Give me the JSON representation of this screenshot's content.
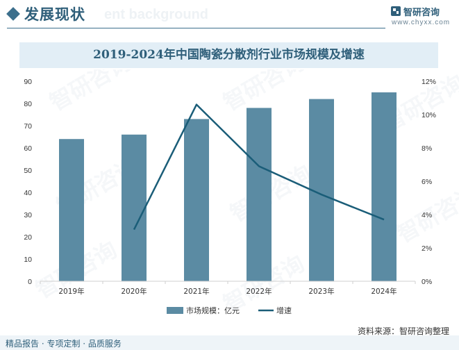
{
  "header": {
    "section_title": "发展现状",
    "watermark_text": "ent background",
    "brand_name": "智研咨询",
    "brand_url": "www.chyxx.com"
  },
  "chart_data": {
    "type": "bar",
    "title": "2019-2024年中国陶瓷分散剂行业市场规模及增速",
    "categories": [
      "2019年",
      "2020年",
      "2021年",
      "2022年",
      "2023年",
      "2024年"
    ],
    "series": [
      {
        "name": "市场规模：亿元",
        "type": "bar",
        "axis": "left",
        "color": "#5b8ba3",
        "values": [
          64,
          66,
          73,
          78,
          82,
          85
        ]
      },
      {
        "name": "增速",
        "type": "line",
        "axis": "right",
        "color": "#1a5d78",
        "values": [
          null,
          3.1,
          10.6,
          6.9,
          5.2,
          3.7
        ]
      }
    ],
    "y_left": {
      "min": 0,
      "max": 90,
      "step": 10,
      "tick_labels": [
        "0",
        "10",
        "20",
        "30",
        "40",
        "50",
        "60",
        "70",
        "80",
        "90"
      ]
    },
    "y_right": {
      "min": 0,
      "max": 12,
      "step": 2,
      "tick_labels": [
        "0%",
        "2%",
        "4%",
        "6%",
        "8%",
        "10%",
        "12%"
      ]
    },
    "grid": false,
    "legend_position": "bottom-center"
  },
  "watermark": {
    "text": "智研咨询"
  },
  "footer": {
    "left_text": "精品报告 · 专项定制 · 品质服务",
    "source": "资料来源：智研咨询整理"
  }
}
